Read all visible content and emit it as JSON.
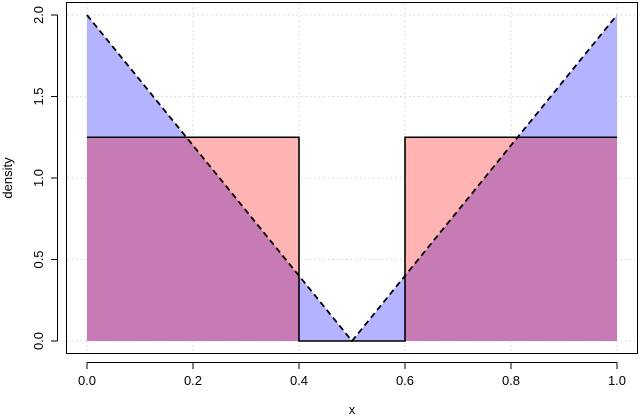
{
  "chart_data": {
    "type": "area",
    "xlabel": "x",
    "ylabel": "density",
    "xlim": [
      -0.02,
      1.02
    ],
    "ylim": [
      -0.05,
      2.05
    ],
    "xticks": [
      0.0,
      0.2,
      0.4,
      0.6,
      0.8,
      1.0
    ],
    "xtick_labels": [
      "0.0",
      "0.2",
      "0.4",
      "0.6",
      "0.8",
      "1.0"
    ],
    "yticks": [
      0.0,
      0.5,
      1.0,
      1.5,
      2.0
    ],
    "ytick_labels": [
      "0.0",
      "0.5",
      "1.0",
      "1.5",
      "2.0"
    ],
    "grid": true,
    "series": [
      {
        "style": "dashed",
        "fill_color": "#b3b3ff",
        "x": [
          0.0,
          0.5,
          1.0
        ],
        "y": [
          2.0,
          0.0,
          2.0
        ]
      },
      {
        "style": "solid",
        "fill_color": "#ffb3b3",
        "x": [
          0.0,
          0.4,
          0.4,
          0.6,
          0.6,
          1.0
        ],
        "y": [
          1.25,
          1.25,
          0.0,
          0.0,
          1.25,
          1.25
        ]
      }
    ],
    "overlap_color": "#c67bb5"
  }
}
